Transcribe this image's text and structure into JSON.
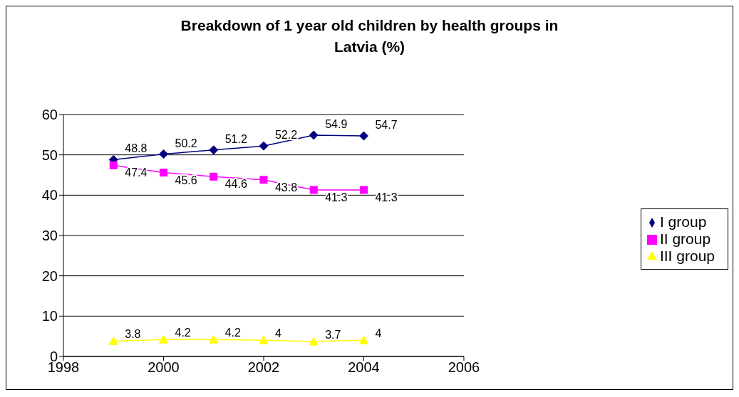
{
  "chart_data": {
    "type": "line",
    "title": "Breakdown of 1 year old children by health groups in Latvia (%)",
    "x": [
      1999,
      2000,
      2001,
      2002,
      2003,
      2004
    ],
    "series": [
      {
        "name": "I group",
        "color": "#000080",
        "marker": "diamond",
        "values": [
          48.8,
          50.2,
          51.2,
          52.2,
          54.9,
          54.7
        ]
      },
      {
        "name": "II group",
        "color": "#ff00ff",
        "marker": "square",
        "values": [
          47.4,
          45.6,
          44.6,
          43.8,
          41.3,
          41.3
        ]
      },
      {
        "name": "III group",
        "color": "#ffff00",
        "marker": "triangle",
        "values": [
          3.8,
          4.2,
          4.2,
          4,
          3.7,
          4
        ]
      }
    ],
    "xlim": [
      1998,
      2006
    ],
    "xticks": [
      1998,
      2000,
      2002,
      2004,
      2006
    ],
    "ylim": [
      0,
      60
    ],
    "yticks": [
      0,
      10,
      20,
      30,
      40,
      50,
      60
    ],
    "grid": "y",
    "legend": "right",
    "data_labels": true,
    "line_style": "solid"
  }
}
